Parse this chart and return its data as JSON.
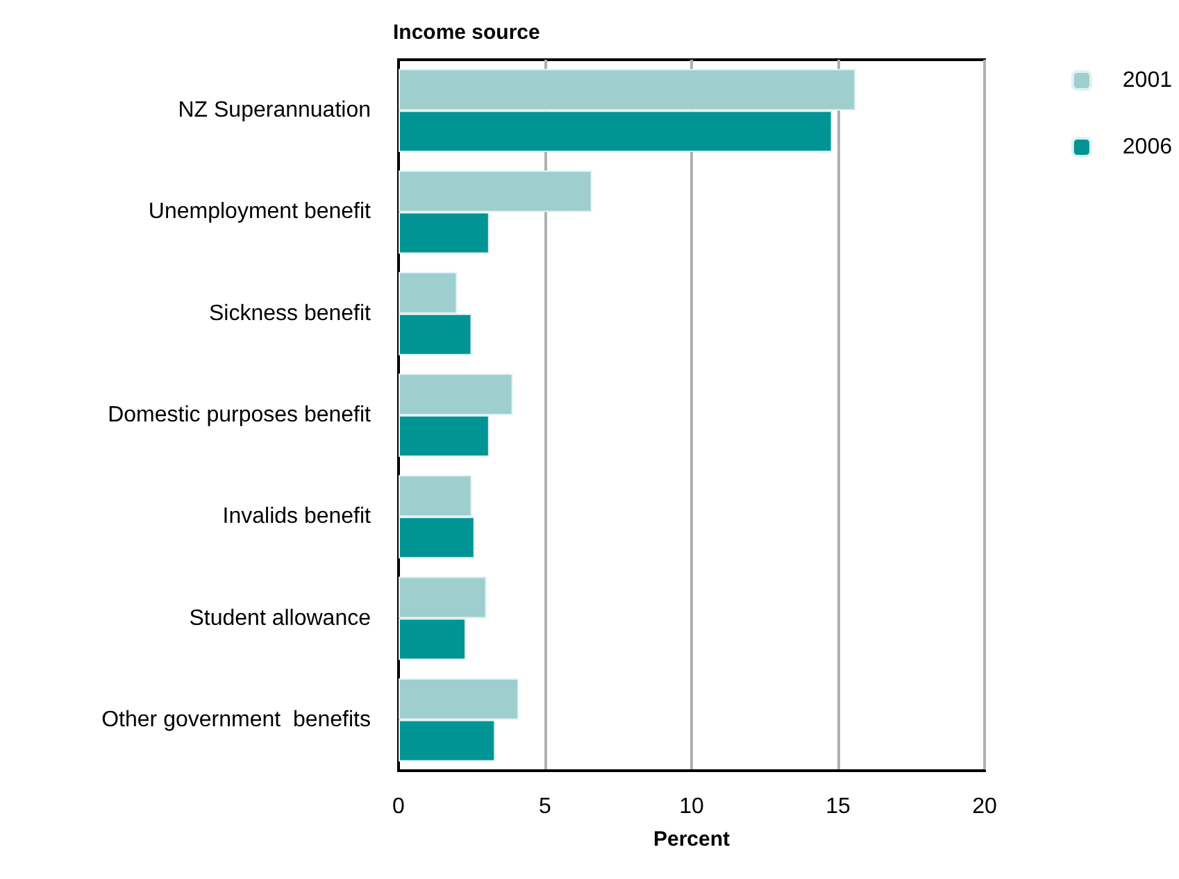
{
  "chart_data": {
    "type": "bar",
    "orientation": "horizontal",
    "ylabel": "Income source",
    "xlabel": "Percent",
    "categories": [
      "NZ Superannuation",
      "Unemployment benefit",
      "Sickness benefit",
      "Domestic purposes benefit",
      "Invalids benefit",
      "Student allowance",
      "Other government  benefits"
    ],
    "series": [
      {
        "name": "2001",
        "color": "#9ecece",
        "values": [
          15.6,
          6.6,
          2.0,
          3.9,
          2.5,
          3.0,
          4.1
        ]
      },
      {
        "name": "2006",
        "color": "#009494",
        "values": [
          14.8,
          3.1,
          2.5,
          3.1,
          2.6,
          2.3,
          3.3
        ]
      }
    ],
    "xlim": [
      0,
      20
    ],
    "xticks": [
      0,
      5,
      10,
      15,
      20
    ],
    "grid": "x",
    "legend": "top right"
  }
}
